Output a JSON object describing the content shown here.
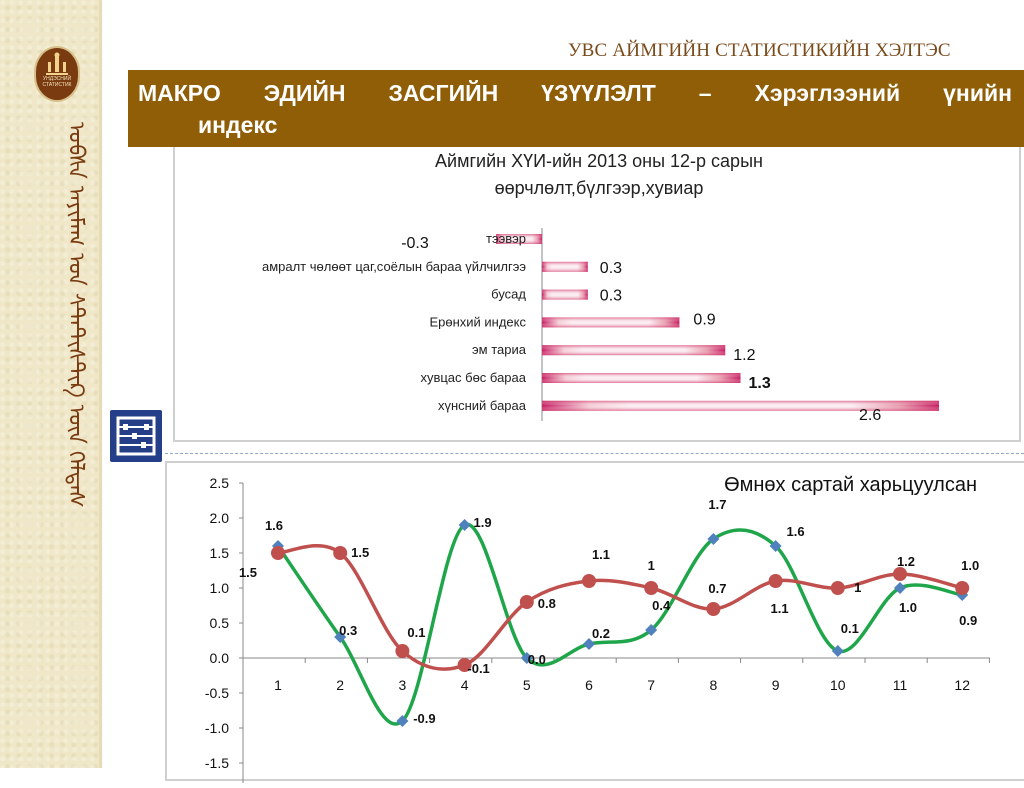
{
  "header": {
    "org": "УВС АЙМГИЙН СТАТИСТИКИЙН ХЭЛТЭС",
    "title_line1": "МАКРО ЭДИЙН ЗАСГИЙН ҮЗҮҮЛЭЛТ – Хэрэглээний үнийн",
    "title_line2": "индекс"
  },
  "sidebar": {
    "logo_text": "УНДЭСНИЙ СТАТИСТИК",
    "script": "ᠤᠪᠰᠠ ᠠᠶᠢᠮᠠᠭ ᠤᠨ ᠰᠲ᠋ᠠᠲ᠋ᠢᠰᠲ᠋ᠢᠺ ᠦᠨ ᠬᠡᠯᠲᠡᠰ"
  },
  "icons": {
    "abacus": "abacus-icon",
    "logo": "emblem-icon"
  },
  "colors": {
    "title_bg": "#8f5e07",
    "bar": "#c4145c",
    "series_green": "#1fa64a",
    "series_red": "#c0504d",
    "marker_blue": "#4f81bd"
  },
  "chart_data": [
    {
      "type": "bar",
      "orientation": "horizontal",
      "title": "Аймгийн ХҮИ-ийн 2013 оны 12-р сарын өөрчлөлт,бүлгээр,хувиар",
      "title_line1": "Аймгийн ХҮИ-ийн 2013 оны 12-р сарын",
      "title_line2": "өөрчлөлт,бүлгээр,хувиар",
      "categories": [
        "тээвэр",
        "амралт чөлөөт цаг,соёлын бараа үйлчилгээ",
        "бусад",
        "Ерөнхий индекс",
        "эм тариа",
        "хувцас бөс бараа",
        "хүнсний бараа"
      ],
      "values": [
        -0.3,
        0.3,
        0.3,
        0.9,
        1.2,
        1.3,
        2.6
      ],
      "value_labels": [
        "-0.3",
        "0.3",
        "0.3",
        "0.9",
        "1.2",
        "1.3",
        "2.6"
      ],
      "xlim": [
        -0.3,
        2.6
      ]
    },
    {
      "type": "line",
      "title": "Өмнөх сартай харьцуулсан",
      "categories": [
        "1",
        "2",
        "3",
        "4",
        "5",
        "6",
        "7",
        "8",
        "9",
        "10",
        "11",
        "12"
      ],
      "series": [
        {
          "values": [
            1.6,
            0.3,
            -0.9,
            1.9,
            0.0,
            0.2,
            0.4,
            1.7,
            1.6,
            0.1,
            1.0,
            0.9
          ],
          "labels": [
            "1.6",
            "0.3",
            "-0.9",
            "1.9",
            "0.0",
            "0.2",
            "0.4",
            "1.7",
            "1.6",
            "0.1",
            "1.0",
            "0.9"
          ]
        },
        {
          "values": [
            1.5,
            1.5,
            0.1,
            -0.1,
            0.8,
            1.1,
            1.0,
            0.7,
            1.1,
            1.0,
            1.2,
            1.0
          ],
          "labels": [
            "1.5",
            "1.5",
            "0.1",
            "-0.1",
            "0.8",
            "1.1",
            "1",
            "0.7",
            "1.1",
            "1",
            "1.2",
            "1.0"
          ]
        }
      ],
      "yticks": [
        "2.5",
        "2.0",
        "1.5",
        "1.0",
        "0.5",
        "0.0",
        "-0.5",
        "-1.0",
        "-1.5"
      ],
      "ylim": [
        -1.5,
        2.5
      ],
      "grid": false
    }
  ]
}
